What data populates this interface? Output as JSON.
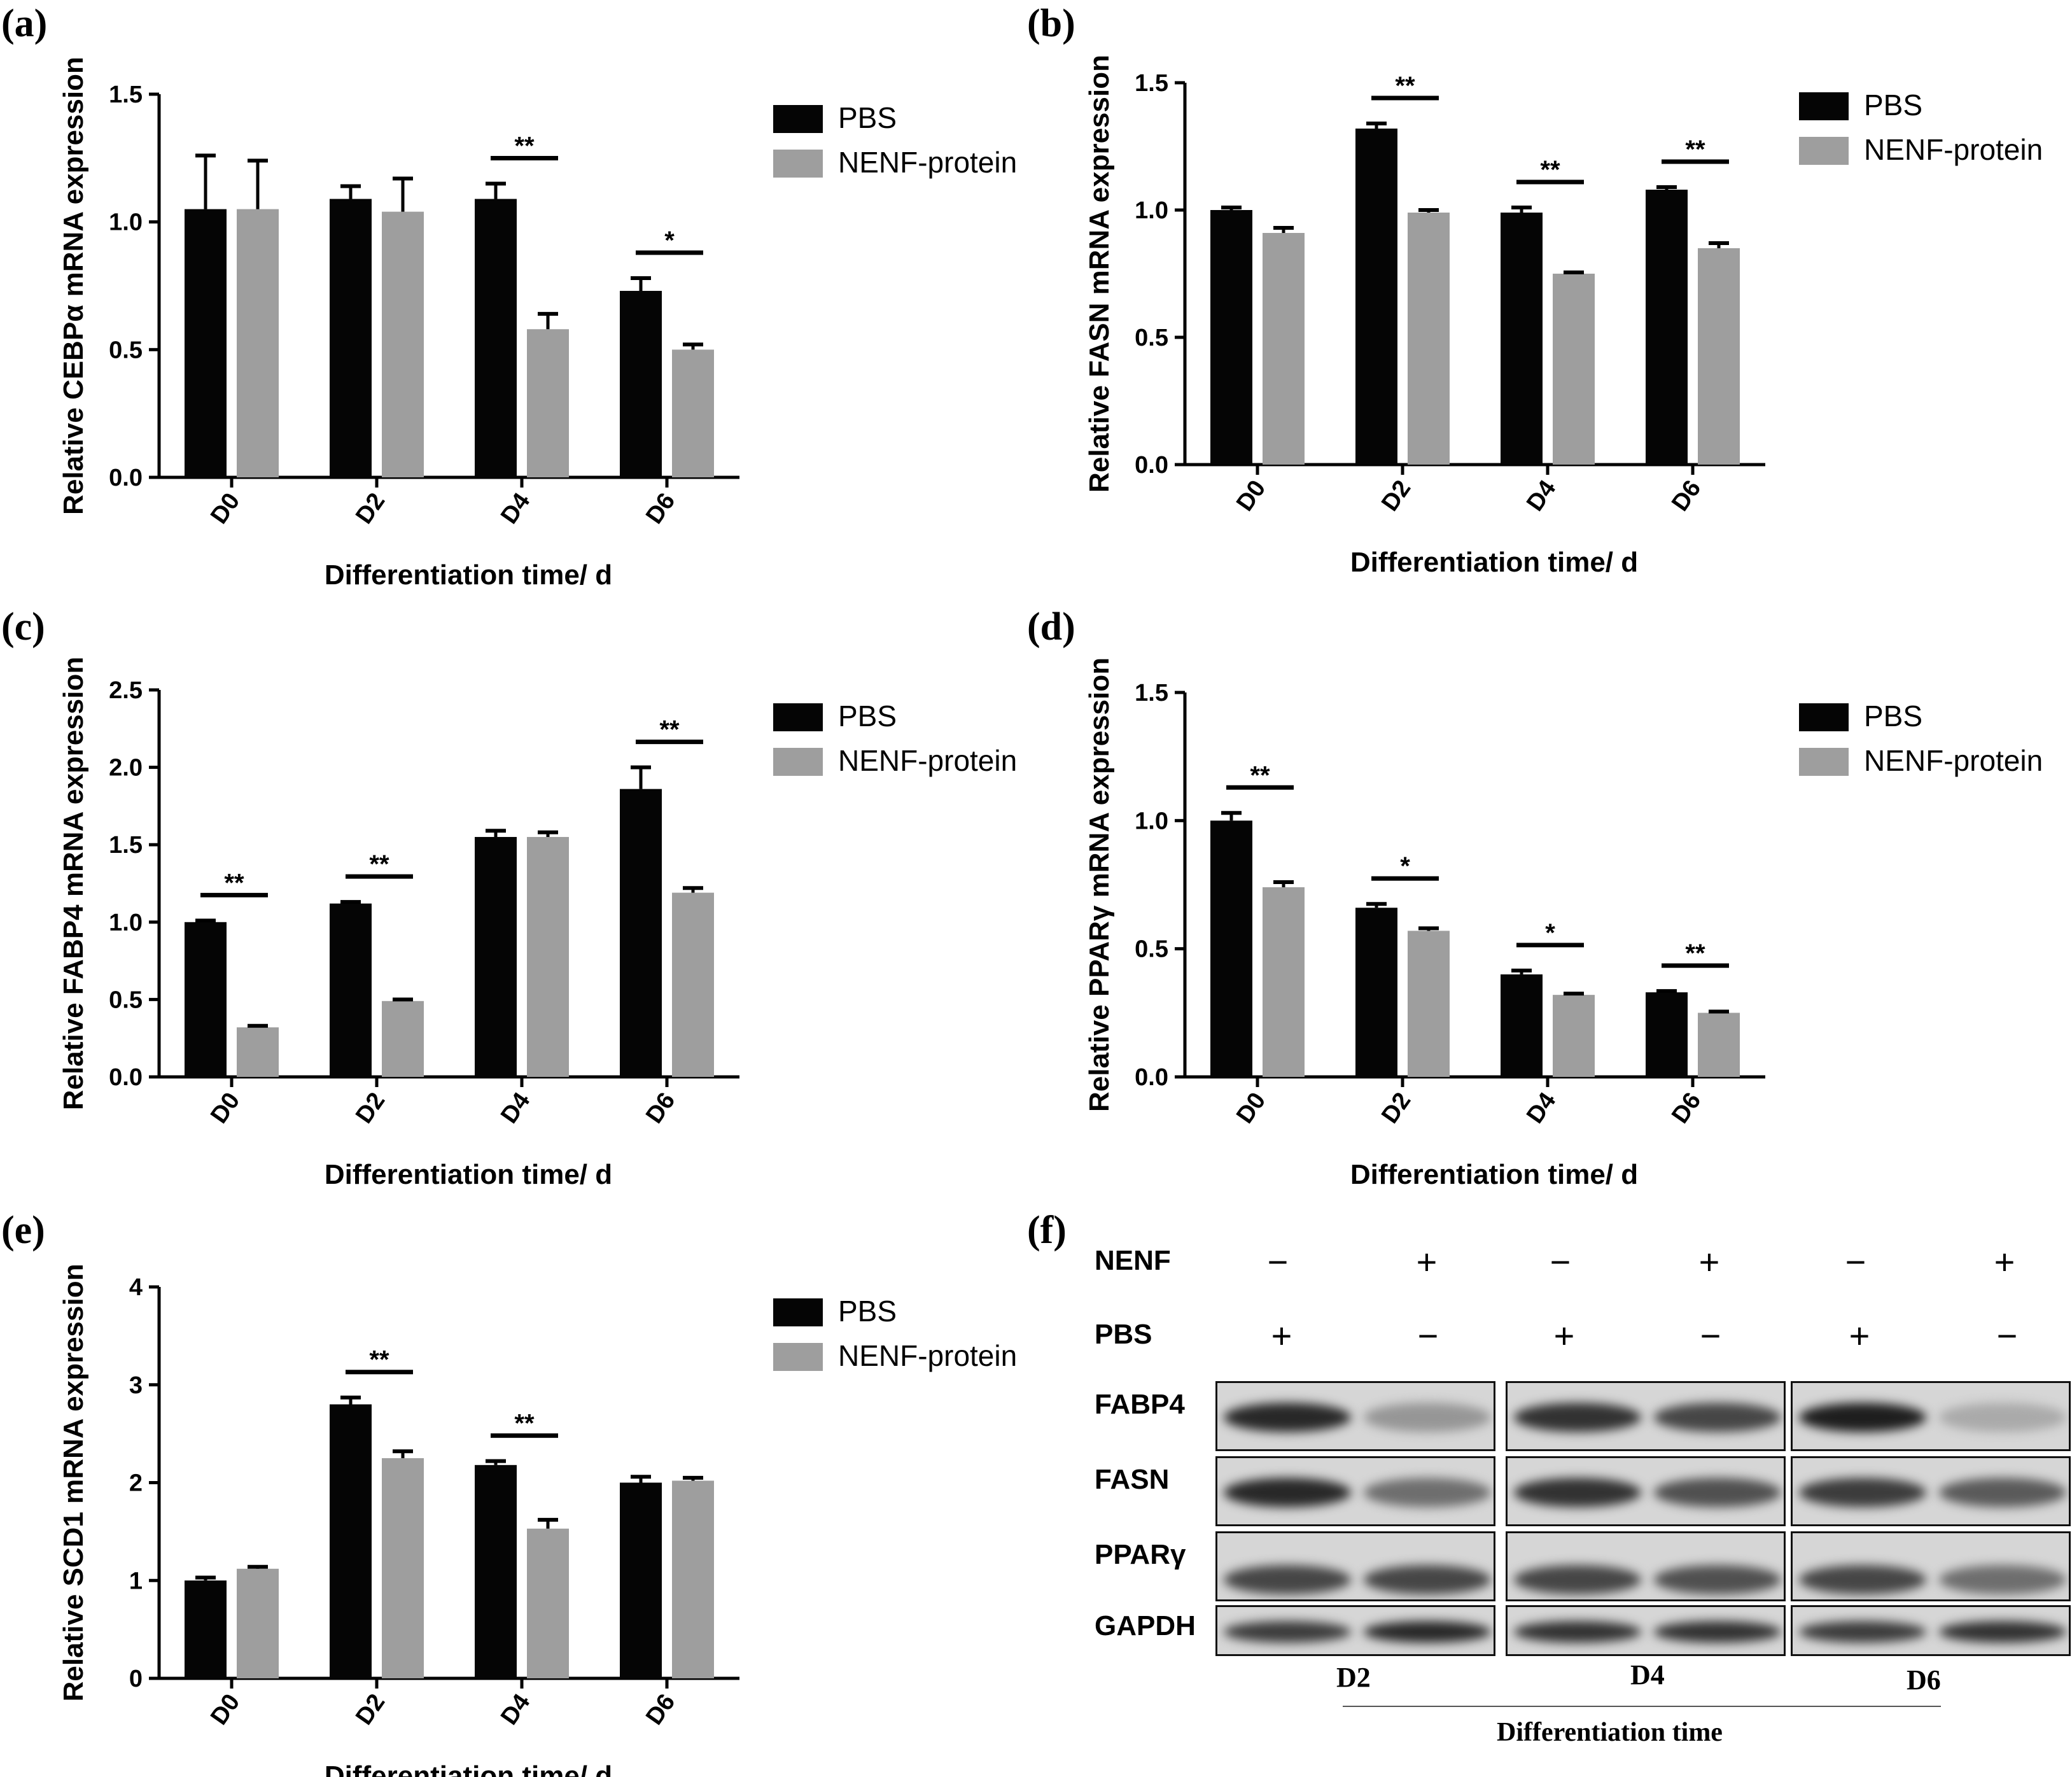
{
  "legend": {
    "pbs": "PBS",
    "nenf": "NENF-protein"
  },
  "colors": {
    "pbs": "#050505",
    "nenf": "#9e9e9e"
  },
  "chart_data": [
    {
      "id": "a",
      "letter": "(a)",
      "type": "bar",
      "title": "",
      "xlabel": "Differentiation time/ d",
      "ylabel": "Relative CEBPα mRNA expression",
      "categories": [
        "D0",
        "D2",
        "D4",
        "D6"
      ],
      "ylim": [
        0,
        1.5
      ],
      "yticks": [
        "0.0",
        "0.5",
        "1.0",
        "1.5"
      ],
      "series": [
        {
          "name": "PBS",
          "values": [
            1.05,
            1.09,
            1.09,
            0.73
          ],
          "errors": [
            0.21,
            0.05,
            0.06,
            0.05
          ]
        },
        {
          "name": "NENF-protein",
          "values": [
            1.05,
            1.04,
            0.58,
            0.5
          ],
          "errors": [
            0.19,
            0.13,
            0.06,
            0.02
          ]
        }
      ],
      "significance": [
        "",
        "",
        "**",
        "*"
      ]
    },
    {
      "id": "b",
      "letter": "(b)",
      "type": "bar",
      "title": "",
      "xlabel": "Differentiation time/ d",
      "ylabel": "Relative FASN mRNA expression",
      "categories": [
        "D0",
        "D2",
        "D4",
        "D6"
      ],
      "ylim": [
        0,
        1.5
      ],
      "yticks": [
        "0.0",
        "0.5",
        "1.0",
        "1.5"
      ],
      "series": [
        {
          "name": "PBS",
          "values": [
            1.0,
            1.32,
            0.99,
            1.08
          ],
          "errors": [
            0.01,
            0.02,
            0.02,
            0.01
          ]
        },
        {
          "name": "NENF-protein",
          "values": [
            0.91,
            0.99,
            0.75,
            0.85
          ],
          "errors": [
            0.02,
            0.01,
            0.005,
            0.02
          ]
        }
      ],
      "significance": [
        "",
        "**",
        "**",
        "**"
      ]
    },
    {
      "id": "c",
      "letter": "(c)",
      "type": "bar",
      "title": "",
      "xlabel": "Differentiation time/ d",
      "ylabel": "Relative FABP4 mRNA expression",
      "categories": [
        "D0",
        "D2",
        "D4",
        "D6"
      ],
      "ylim": [
        0,
        2.5
      ],
      "yticks": [
        "0.0",
        "0.5",
        "1.0",
        "1.5",
        "2.0",
        "2.5"
      ],
      "series": [
        {
          "name": "PBS",
          "values": [
            1.0,
            1.12,
            1.55,
            1.86
          ],
          "errors": [
            0.01,
            0.01,
            0.04,
            0.14
          ]
        },
        {
          "name": "NENF-protein",
          "values": [
            0.32,
            0.49,
            1.55,
            1.19
          ],
          "errors": [
            0.01,
            0.01,
            0.03,
            0.03
          ]
        }
      ],
      "significance": [
        "**",
        "**",
        "",
        "**"
      ]
    },
    {
      "id": "d",
      "letter": "(d)",
      "type": "bar",
      "title": "",
      "xlabel": "Differentiation time/ d",
      "ylabel": "Relative PPARγ mRNA expression",
      "categories": [
        "D0",
        "D2",
        "D4",
        "D6"
      ],
      "ylim": [
        0,
        1.5
      ],
      "yticks": [
        "0.0",
        "0.5",
        "1.0",
        "1.5"
      ],
      "series": [
        {
          "name": "PBS",
          "values": [
            1.0,
            0.66,
            0.4,
            0.33
          ],
          "errors": [
            0.03,
            0.015,
            0.015,
            0.005
          ]
        },
        {
          "name": "NENF-protein",
          "values": [
            0.74,
            0.57,
            0.32,
            0.25
          ],
          "errors": [
            0.02,
            0.01,
            0.005,
            0.005
          ]
        }
      ],
      "significance": [
        "**",
        "*",
        "*",
        "**"
      ]
    },
    {
      "id": "e",
      "letter": "(e)",
      "type": "bar",
      "title": "",
      "xlabel": "Differentiation time/ d",
      "ylabel": "Relative SCD1 mRNA expression",
      "categories": [
        "D0",
        "D2",
        "D4",
        "D6"
      ],
      "ylim": [
        0,
        4
      ],
      "yticks": [
        "0",
        "1",
        "2",
        "3",
        "4"
      ],
      "series": [
        {
          "name": "PBS",
          "values": [
            1.0,
            2.8,
            2.18,
            2.0
          ],
          "errors": [
            0.03,
            0.07,
            0.04,
            0.06
          ]
        },
        {
          "name": "NENF-protein",
          "values": [
            1.12,
            2.25,
            1.53,
            2.02
          ],
          "errors": [
            0.02,
            0.07,
            0.09,
            0.03
          ]
        }
      ],
      "significance": [
        "",
        "**",
        "**",
        ""
      ]
    }
  ],
  "blot": {
    "letter": "(f)",
    "row_labels": [
      "NENF",
      "PBS"
    ],
    "nenf_signs": [
      "−",
      "+",
      "−",
      "+",
      "−",
      "+"
    ],
    "pbs_signs": [
      "+",
      "−",
      "+",
      "−",
      "+",
      "−"
    ],
    "proteins": [
      "FABP4",
      "FASN",
      "PPARγ",
      "GAPDH"
    ],
    "time_points": [
      "D2",
      "D4",
      "D6"
    ],
    "axis_label": "Differentiation time"
  }
}
